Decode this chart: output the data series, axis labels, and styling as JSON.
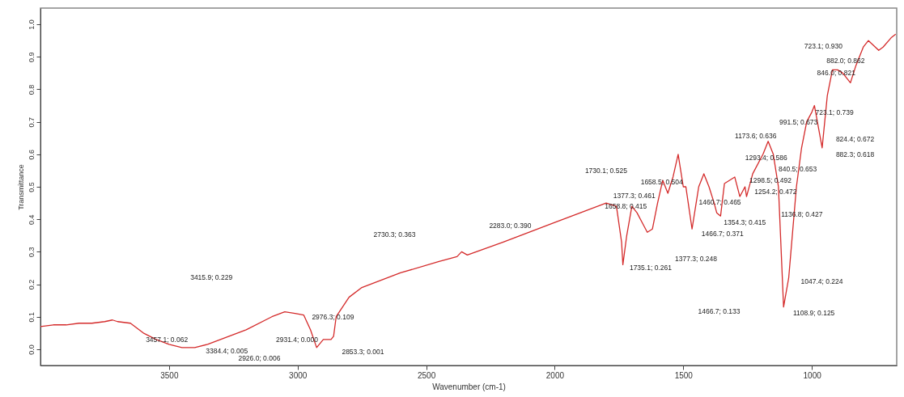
{
  "chart_data": {
    "type": "line",
    "xlabel": "Wavenumber (cm-1)",
    "ylabel": "Transmittance",
    "x": [
      4000,
      3950,
      3900,
      3850,
      3800,
      3750,
      3720,
      3700,
      3650,
      3600,
      3550,
      3500,
      3450,
      3400,
      3350,
      3300,
      3200,
      3100,
      3050,
      3010,
      2976,
      2950,
      2926,
      2900,
      2870,
      2860,
      2850,
      2800,
      2750,
      2600,
      2450,
      2380,
      2362,
      2340,
      2200,
      2000,
      1900,
      1800,
      1760,
      1740,
      1735,
      1720,
      1700,
      1680,
      1660,
      1640,
      1620,
      1600,
      1580,
      1560,
      1540,
      1520,
      1500,
      1490,
      1466,
      1440,
      1420,
      1400,
      1380,
      1370,
      1355,
      1340,
      1300,
      1280,
      1260,
      1254,
      1230,
      1190,
      1170,
      1150,
      1130,
      1110,
      1090,
      1060,
      1040,
      1020,
      1000,
      990,
      960,
      940,
      920,
      900,
      880,
      850,
      830,
      800,
      780,
      740,
      723,
      690,
      674
    ],
    "series": [
      {
        "color": "#d42a2a",
        "values": [
          0.07,
          0.075,
          0.075,
          0.08,
          0.08,
          0.085,
          0.09,
          0.085,
          0.08,
          0.05,
          0.03,
          0.015,
          0.005,
          0.005,
          0.015,
          0.03,
          0.06,
          0.1,
          0.115,
          0.11,
          0.105,
          0.06,
          0.005,
          0.03,
          0.03,
          0.04,
          0.1,
          0.16,
          0.19,
          0.235,
          0.27,
          0.285,
          0.3,
          0.29,
          0.33,
          0.39,
          0.42,
          0.45,
          0.44,
          0.33,
          0.26,
          0.35,
          0.44,
          0.42,
          0.39,
          0.36,
          0.37,
          0.45,
          0.52,
          0.48,
          0.53,
          0.6,
          0.5,
          0.5,
          0.37,
          0.5,
          0.54,
          0.5,
          0.45,
          0.42,
          0.41,
          0.51,
          0.53,
          0.47,
          0.5,
          0.47,
          0.54,
          0.6,
          0.64,
          0.6,
          0.5,
          0.13,
          0.22,
          0.5,
          0.62,
          0.7,
          0.73,
          0.75,
          0.62,
          0.78,
          0.86,
          0.86,
          0.85,
          0.82,
          0.87,
          0.93,
          0.95,
          0.92,
          0.93,
          0.96,
          0.97
        ]
      }
    ],
    "xlim": [
      4000,
      670
    ],
    "xticks": [
      3500,
      3000,
      2500,
      2000,
      1500,
      1000
    ],
    "ylim": [
      -0.05,
      1.05
    ],
    "yticks": [
      {
        "value": 0,
        "label": "0.0"
      },
      {
        "value": 0.1,
        "label": "0.1"
      },
      {
        "value": 0.2,
        "label": "0.2"
      },
      {
        "value": 0.3,
        "label": "0.3"
      },
      {
        "value": 0.4,
        "label": "0.4"
      },
      {
        "value": 0.5,
        "label": "0.5"
      },
      {
        "value": 0.6,
        "label": "0.6"
      },
      {
        "value": 0.7,
        "label": "0.7"
      },
      {
        "value": 0.8,
        "label": "0.8"
      },
      {
        "value": 0.9,
        "label": "0.9"
      },
      {
        "value": 1,
        "label": "1.0"
      }
    ],
    "grid": false,
    "marker": "none",
    "line_style": "solid",
    "annotations": [
      "3415.9; 0.229",
      "3457.1; 0.062",
      "3384.4; 0.005",
      "2976.3; 0.109",
      "2931.4; 0.000",
      "2926.0; 0.006",
      "2853.3; 0.001",
      "2730.3; 0.363",
      "2283.0; 0.390",
      "1735.1; 0.261",
      "1730.1; 0.525",
      "1658.5; 0.504",
      "1377.3; 0.461",
      "1658.8; 0.415",
      "1466.7; 0.371",
      "1377.3; 0.248",
      "1466.7; 0.133",
      "1460.7; 0.465",
      "1354.3; 0.415",
      "1136.8; 0.427",
      "1047.4; 0.224",
      "1108.9; 0.125",
      "1293.4; 0.586",
      "1173.6; 0.636",
      "1298.5; 0.492",
      "1254.2; 0.472",
      "840.5; 0.653",
      "991.5; 0.673",
      "723.1; 0.739",
      "824.4; 0.672",
      "882.3; 0.618",
      "723.1; 0.930",
      "882.0; 0.862",
      "846.0; 0.821"
    ]
  }
}
